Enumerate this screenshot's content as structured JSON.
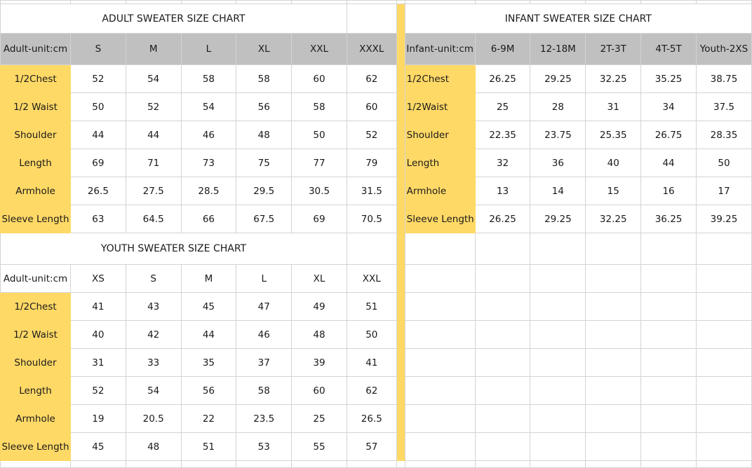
{
  "colors": {
    "header_bg": "#c0c0c0",
    "label_bg": "#ffd966",
    "grid": "#d4d4d4"
  },
  "adult": {
    "title": "ADULT SWEATER SIZE CHART",
    "headers": [
      "Adult-unit:cm",
      "S",
      "M",
      "L",
      "XL",
      "XXL",
      "XXXL"
    ],
    "rows": [
      [
        "1/2Chest",
        "52",
        "54",
        "58",
        "58",
        "60",
        "62"
      ],
      [
        "1/2 Waist",
        "50",
        "52",
        "54",
        "56",
        "58",
        "60"
      ],
      [
        "Shoulder",
        "44",
        "44",
        "46",
        "48",
        "50",
        "52"
      ],
      [
        "Length",
        "69",
        "71",
        "73",
        "75",
        "77",
        "79"
      ],
      [
        "Armhole",
        "26.5",
        "27.5",
        "28.5",
        "29.5",
        "30.5",
        "31.5"
      ],
      [
        "Sleeve Length",
        "63",
        "64.5",
        "66",
        "67.5",
        "69",
        "70.5"
      ]
    ]
  },
  "infant": {
    "title": "INFANT SWEATER SIZE CHART",
    "headers": [
      "Infant-unit:cm",
      "6-9M",
      "12-18M",
      "2T-3T",
      "4T-5T",
      "Youth-2XS"
    ],
    "rows": [
      [
        "1/2Chest",
        "26.25",
        "29.25",
        "32.25",
        "35.25",
        "38.75"
      ],
      [
        "1/2Waist",
        "25",
        "28",
        "31",
        "34",
        "37.5"
      ],
      [
        "Shoulder",
        "22.35",
        "23.75",
        "25.35",
        "26.75",
        "28.35"
      ],
      [
        "Length",
        "32",
        "36",
        "40",
        "44",
        "50"
      ],
      [
        "Armhole",
        "13",
        "14",
        "15",
        "16",
        "17"
      ],
      [
        "Sleeve Length",
        "26.25",
        "29.25",
        "32.25",
        "36.25",
        "39.25"
      ]
    ]
  },
  "youth": {
    "title": "YOUTH SWEATER SIZE CHART",
    "headers": [
      "Adult-unit:cm",
      "XS",
      "S",
      "M",
      "L",
      "XL",
      "XXL"
    ],
    "rows": [
      [
        "1/2Chest",
        "41",
        "43",
        "45",
        "47",
        "49",
        "51"
      ],
      [
        "1/2 Waist",
        "40",
        "42",
        "44",
        "46",
        "48",
        "50"
      ],
      [
        "Shoulder",
        "31",
        "33",
        "35",
        "37",
        "39",
        "41"
      ],
      [
        "Length",
        "52",
        "54",
        "56",
        "58",
        "60",
        "62"
      ],
      [
        "Armhole",
        "19",
        "20.5",
        "22",
        "23.5",
        "25",
        "26.5"
      ],
      [
        "Sleeve Length",
        "45",
        "48",
        "51",
        "53",
        "55",
        "57"
      ]
    ]
  }
}
